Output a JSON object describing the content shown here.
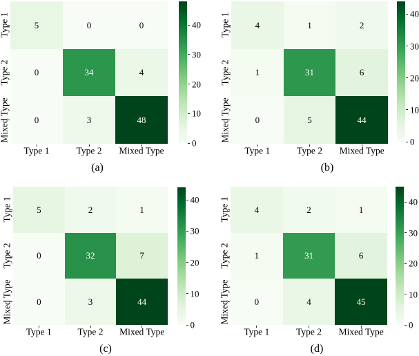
{
  "figure": {
    "background": "#ffffff",
    "tick_color": "#262626",
    "annot_color_dark": "#000000",
    "annot_color_light": "#ffffff",
    "annot_luminance_threshold": 0.5,
    "colormap_name": "Greens",
    "colormap_stops": [
      "#f7fcf5",
      "#e5f5e0",
      "#c7e9c0",
      "#a1d99b",
      "#74c476",
      "#41ab5d",
      "#238b45",
      "#006d2c",
      "#00441b"
    ]
  },
  "chart_data": [
    {
      "type": "heatmap",
      "caption": "(a)",
      "x_categories": [
        "Type 1",
        "Type 2",
        "Mixed Type"
      ],
      "y_categories": [
        "Type 1",
        "Type 2",
        "Mixed Type"
      ],
      "values": [
        [
          5,
          0,
          0
        ],
        [
          0,
          34,
          4
        ],
        [
          0,
          3,
          48
        ]
      ],
      "vmin": 0,
      "vmax": 48,
      "colorbar_ticks": [
        0,
        10,
        20,
        30,
        40
      ],
      "legend_position": "right",
      "grid": false
    },
    {
      "type": "heatmap",
      "caption": "(b)",
      "x_categories": [
        "Type 1",
        "Type 2",
        "Mixed Type"
      ],
      "y_categories": [
        "Type 1",
        "Type 2",
        "Mixed Type"
      ],
      "values": [
        [
          4,
          1,
          2
        ],
        [
          1,
          31,
          6
        ],
        [
          0,
          5,
          44
        ]
      ],
      "vmin": 0,
      "vmax": 44,
      "colorbar_ticks": [
        0,
        10,
        20,
        30,
        40
      ],
      "legend_position": "right",
      "grid": false
    },
    {
      "type": "heatmap",
      "caption": "(c)",
      "x_categories": [
        "Type 1",
        "Type 2",
        "Mixed Type"
      ],
      "y_categories": [
        "Type 1",
        "Type 2",
        "Mixed Type"
      ],
      "values": [
        [
          5,
          2,
          1
        ],
        [
          0,
          32,
          7
        ],
        [
          0,
          3,
          44
        ]
      ],
      "vmin": 0,
      "vmax": 44,
      "colorbar_ticks": [
        0,
        10,
        20,
        30,
        40
      ],
      "legend_position": "right",
      "grid": false
    },
    {
      "type": "heatmap",
      "caption": "(d)",
      "x_categories": [
        "Type 1",
        "Type 2",
        "Mixed Type"
      ],
      "y_categories": [
        "Type 1",
        "Type 2",
        "Mixed Type"
      ],
      "values": [
        [
          4,
          2,
          1
        ],
        [
          1,
          31,
          6
        ],
        [
          0,
          4,
          45
        ]
      ],
      "vmin": 0,
      "vmax": 45,
      "colorbar_ticks": [
        0,
        10,
        20,
        30,
        40
      ],
      "legend_position": "right",
      "grid": false
    }
  ]
}
